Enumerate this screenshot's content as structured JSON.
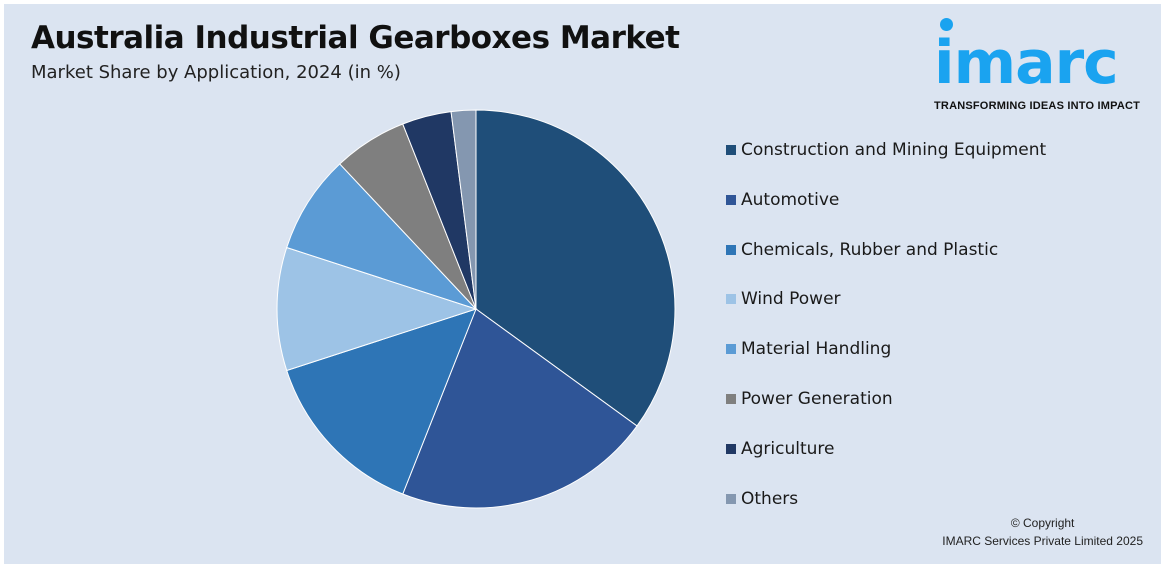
{
  "header": {
    "title": "Australia Industrial Gearboxes Market",
    "subtitle": "Market Share by Application, 2024 (in %)"
  },
  "logo": {
    "text": "imarc",
    "tagline": "TRANSFORMING IDEAS INTO IMPACT",
    "color": "#1aa3f0"
  },
  "footer": {
    "copyright": "© Copyright",
    "company": "IMARC Services Private Limited 2025"
  },
  "chart_data": {
    "type": "pie",
    "title": "Australia Industrial Gearboxes Market",
    "subtitle": "Market Share by Application, 2024 (in %)",
    "start_angle": "12 o'clock, clockwise",
    "legend_placement": "right",
    "slices": [
      {
        "label": "Construction and Mining Equipment",
        "value": 35,
        "color": "#1f4e79"
      },
      {
        "label": "Automotive",
        "value": 21,
        "color": "#2f5597"
      },
      {
        "label": "Chemicals, Rubber and Plastic",
        "value": 14,
        "color": "#2e75b6"
      },
      {
        "label": "Wind Power",
        "value": 10,
        "color": "#9dc3e6"
      },
      {
        "label": "Material Handling",
        "value": 8,
        "color": "#5b9bd5"
      },
      {
        "label": "Power Generation",
        "value": 6,
        "color": "#7f7f7f"
      },
      {
        "label": "Agriculture",
        "value": 4,
        "color": "#203864"
      },
      {
        "label": "Others",
        "value": 2,
        "color": "#8497b0"
      }
    ]
  }
}
